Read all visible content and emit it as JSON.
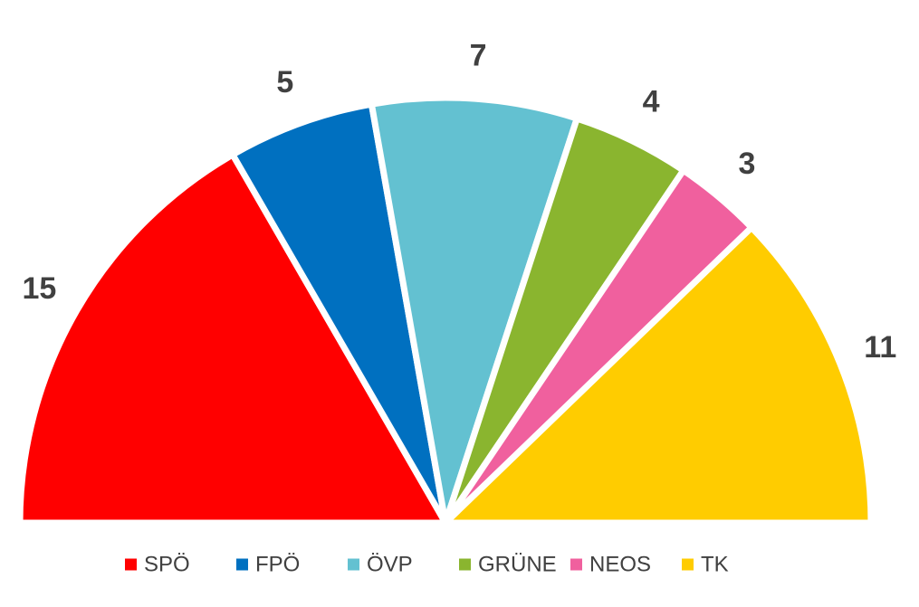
{
  "chart_data": {
    "type": "pie",
    "variant": "semicircle-parliament",
    "legend_position": "bottom",
    "series": [
      {
        "name": "SPÖ",
        "value": 15,
        "label": "15",
        "color": "#ff0000"
      },
      {
        "name": "FPÖ",
        "value": 5,
        "label": "5",
        "color": "#0070c0"
      },
      {
        "name": "ÖVP",
        "value": 7,
        "label": "7",
        "color": "#63c1d1"
      },
      {
        "name": "GRÜNE",
        "value": 4,
        "label": "4",
        "color": "#8ab52f"
      },
      {
        "name": "NEOS",
        "value": 3,
        "label": "3",
        "color": "#f0609e"
      },
      {
        "name": "TK",
        "value": 11,
        "label": "11",
        "color": "#ffcc00"
      }
    ]
  }
}
